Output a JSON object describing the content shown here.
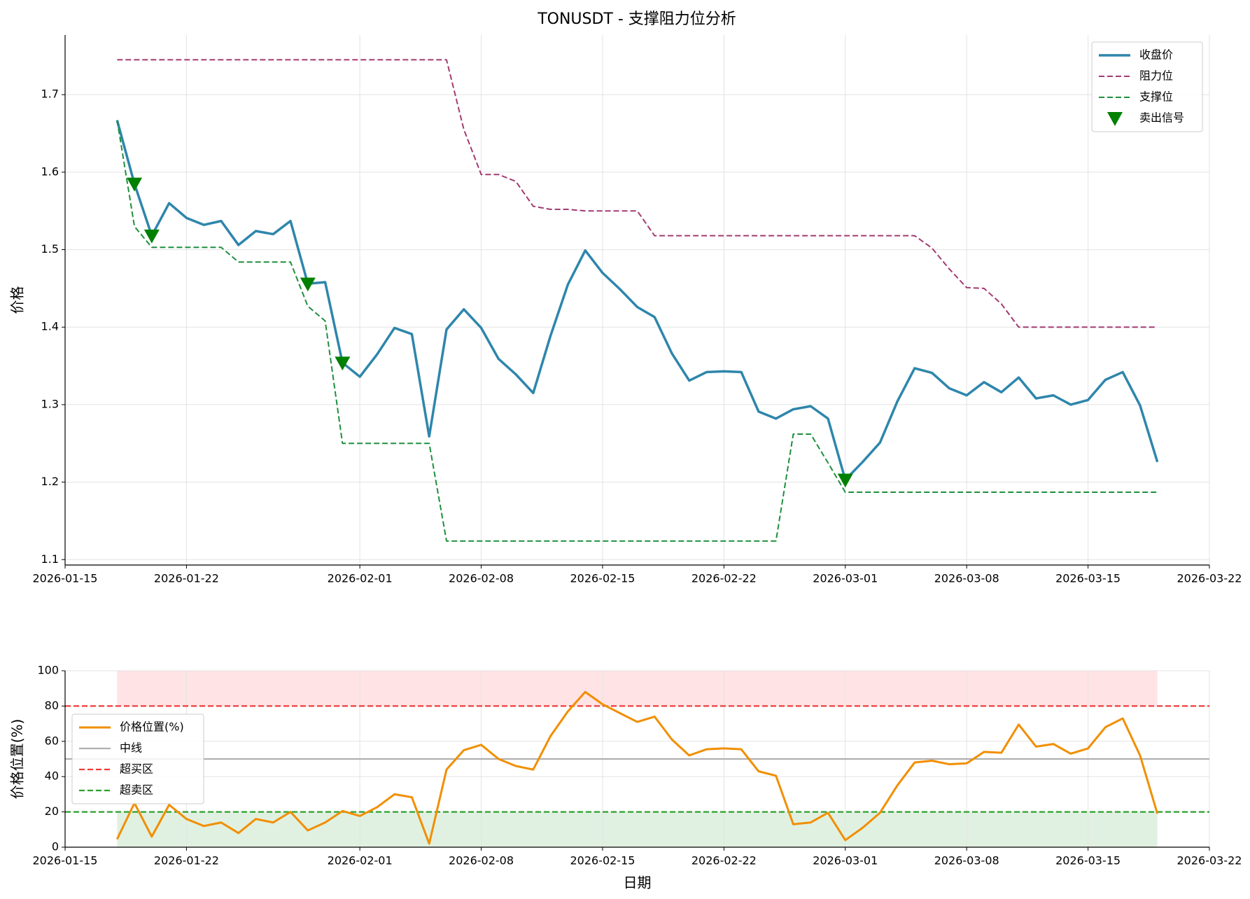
{
  "chart_data": [
    {
      "type": "line",
      "title": "TONUSDT - 支撑阻力位分析",
      "y_label": "价格",
      "x": [
        "2026-01-18",
        "2026-01-19",
        "2026-01-20",
        "2026-01-21",
        "2026-01-22",
        "2026-01-23",
        "2026-01-24",
        "2026-01-25",
        "2026-01-26",
        "2026-01-27",
        "2026-01-28",
        "2026-01-29",
        "2026-01-30",
        "2026-01-31",
        "2026-02-01",
        "2026-02-02",
        "2026-02-03",
        "2026-02-04",
        "2026-02-05",
        "2026-02-06",
        "2026-02-07",
        "2026-02-08",
        "2026-02-09",
        "2026-02-10",
        "2026-02-11",
        "2026-02-12",
        "2026-02-13",
        "2026-02-14",
        "2026-02-15",
        "2026-02-16",
        "2026-02-17",
        "2026-02-18",
        "2026-02-19",
        "2026-02-20",
        "2026-02-21",
        "2026-02-22",
        "2026-02-23",
        "2026-02-24",
        "2026-02-25",
        "2026-02-26",
        "2026-02-27",
        "2026-02-28",
        "2026-03-01",
        "2026-03-02",
        "2026-03-03",
        "2026-03-04",
        "2026-03-05",
        "2026-03-06",
        "2026-03-07",
        "2026-03-08",
        "2026-03-09",
        "2026-03-10",
        "2026-03-11",
        "2026-03-12",
        "2026-03-13",
        "2026-03-14",
        "2026-03-15",
        "2026-03-16",
        "2026-03-17",
        "2026-03-18",
        "2026-03-19"
      ],
      "series": [
        {
          "name": "收盘价",
          "color": "#2e86ab",
          "linestyle": "solid",
          "width": 3.5,
          "values": [
            1.667,
            1.585,
            1.518,
            1.56,
            1.541,
            1.532,
            1.537,
            1.506,
            1.524,
            1.52,
            1.537,
            1.456,
            1.458,
            1.354,
            1.336,
            1.365,
            1.399,
            1.391,
            1.259,
            1.397,
            1.423,
            1.399,
            1.359,
            1.339,
            1.315,
            1.389,
            1.455,
            1.499,
            1.47,
            1.449,
            1.426,
            1.413,
            1.366,
            1.331,
            1.342,
            1.343,
            1.342,
            1.291,
            1.282,
            1.294,
            1.298,
            1.282,
            1.203,
            1.226,
            1.251,
            1.304,
            1.347,
            1.341,
            1.321,
            1.312,
            1.329,
            1.316,
            1.335,
            1.308,
            1.312,
            1.3,
            1.306,
            1.332,
            1.342,
            1.299,
            1.226
          ]
        },
        {
          "name": "阻力位",
          "color": "#a23b72",
          "linestyle": "dashed",
          "width": 2,
          "values": [
            1.745,
            1.745,
            1.745,
            1.745,
            1.745,
            1.745,
            1.745,
            1.745,
            1.745,
            1.745,
            1.745,
            1.745,
            1.745,
            1.745,
            1.745,
            1.745,
            1.745,
            1.745,
            1.745,
            1.745,
            1.655,
            1.597,
            1.597,
            1.588,
            1.556,
            1.552,
            1.552,
            1.55,
            1.55,
            1.55,
            1.55,
            1.518,
            1.518,
            1.518,
            1.518,
            1.518,
            1.518,
            1.518,
            1.518,
            1.518,
            1.518,
            1.518,
            1.518,
            1.518,
            1.518,
            1.518,
            1.518,
            1.502,
            1.475,
            1.451,
            1.45,
            1.43,
            1.4,
            1.4,
            1.4,
            1.4,
            1.4,
            1.4,
            1.4,
            1.4,
            1.4
          ]
        },
        {
          "name": "支撑位",
          "color": "#1e8f3e",
          "linestyle": "dashed",
          "width": 2,
          "values": [
            1.667,
            1.53,
            1.503,
            1.503,
            1.503,
            1.503,
            1.503,
            1.484,
            1.484,
            1.484,
            1.484,
            1.427,
            1.408,
            1.25,
            1.25,
            1.25,
            1.25,
            1.25,
            1.25,
            1.124,
            1.124,
            1.124,
            1.124,
            1.124,
            1.124,
            1.124,
            1.124,
            1.124,
            1.124,
            1.124,
            1.124,
            1.124,
            1.124,
            1.124,
            1.124,
            1.124,
            1.124,
            1.124,
            1.124,
            1.262,
            1.262,
            1.225,
            1.187,
            1.187,
            1.187,
            1.187,
            1.187,
            1.187,
            1.187,
            1.187,
            1.187,
            1.187,
            1.187,
            1.187,
            1.187,
            1.187,
            1.187,
            1.187,
            1.187,
            1.187,
            1.187
          ]
        }
      ],
      "markers": {
        "name": "卖出信号",
        "color": "#008000",
        "x": [
          "2026-01-19",
          "2026-01-20",
          "2026-01-29",
          "2026-01-31",
          "2026-03-01"
        ],
        "values": [
          1.585,
          1.518,
          1.456,
          1.354,
          1.203
        ]
      },
      "xlim": [
        "2026-01-15",
        "2026-03-22"
      ],
      "xticks": [
        "2026-01-15",
        "2026-01-22",
        "2026-02-01",
        "2026-02-08",
        "2026-02-15",
        "2026-02-22",
        "2026-03-01",
        "2026-03-08",
        "2026-03-15",
        "2026-03-22"
      ],
      "ylim": [
        1.093,
        1.777
      ],
      "yticks": [
        1.1,
        1.2,
        1.3,
        1.4,
        1.5,
        1.6,
        1.7
      ],
      "grid": true,
      "legend": "upper right"
    },
    {
      "type": "line",
      "y_label": "价格位置(%)",
      "x_label": "日期",
      "x": [
        "2026-01-18",
        "2026-01-19",
        "2026-01-20",
        "2026-01-21",
        "2026-01-22",
        "2026-01-23",
        "2026-01-24",
        "2026-01-25",
        "2026-01-26",
        "2026-01-27",
        "2026-01-28",
        "2026-01-29",
        "2026-01-30",
        "2026-01-31",
        "2026-02-01",
        "2026-02-02",
        "2026-02-03",
        "2026-02-04",
        "2026-02-05",
        "2026-02-06",
        "2026-02-07",
        "2026-02-08",
        "2026-02-09",
        "2026-02-10",
        "2026-02-11",
        "2026-02-12",
        "2026-02-13",
        "2026-02-14",
        "2026-02-15",
        "2026-02-16",
        "2026-02-17",
        "2026-02-18",
        "2026-02-19",
        "2026-02-20",
        "2026-02-21",
        "2026-02-22",
        "2026-02-23",
        "2026-02-24",
        "2026-02-25",
        "2026-02-26",
        "2026-02-27",
        "2026-02-28",
        "2026-03-01",
        "2026-03-02",
        "2026-03-03",
        "2026-03-04",
        "2026-03-05",
        "2026-03-06",
        "2026-03-07",
        "2026-03-08",
        "2026-03-09",
        "2026-03-10",
        "2026-03-11",
        "2026-03-12",
        "2026-03-13",
        "2026-03-14",
        "2026-03-15",
        "2026-03-16",
        "2026-03-17",
        "2026-03-18",
        "2026-03-19"
      ],
      "series": [
        {
          "name": "价格位置(%)",
          "color": "#f18f01",
          "linestyle": "solid",
          "width": 3,
          "values": [
            4.5,
            25,
            6,
            24,
            16,
            12,
            14,
            8,
            16,
            14,
            20,
            9.5,
            14,
            20.5,
            17.7,
            22.7,
            30,
            28.3,
            2,
            44,
            55,
            58,
            50,
            46,
            44,
            63,
            77,
            88,
            81,
            76,
            71,
            74,
            61,
            52,
            55.5,
            56,
            55.5,
            43,
            40.5,
            13,
            14,
            19.5,
            4,
            11,
            19.5,
            35,
            48,
            49,
            47,
            47.5,
            54,
            53.5,
            69.5,
            57,
            58.5,
            53,
            56,
            68,
            73,
            52,
            19
          ]
        }
      ],
      "hlines": [
        {
          "name": "中线",
          "value": 50,
          "color": "#b0b0b0",
          "linestyle": "solid"
        },
        {
          "name": "超买区",
          "value": 80,
          "color": "#f03c3c",
          "linestyle": "dashed"
        },
        {
          "name": "超卖区",
          "value": 20,
          "color": "#2ca02c",
          "linestyle": "dashed"
        }
      ],
      "bands": [
        {
          "range": [
            80,
            100
          ],
          "color": "#ffcccf"
        },
        {
          "range": [
            0,
            20
          ],
          "color": "#c8e6c9"
        }
      ],
      "xlim": [
        "2026-01-15",
        "2026-03-22"
      ],
      "xticks": [
        "2026-01-15",
        "2026-01-22",
        "2026-02-01",
        "2026-02-08",
        "2026-02-15",
        "2026-02-22",
        "2026-03-01",
        "2026-03-08",
        "2026-03-15",
        "2026-03-22"
      ],
      "ylim": [
        0,
        100
      ],
      "yticks": [
        0,
        20,
        40,
        60,
        80,
        100
      ],
      "grid": true,
      "legend": "center left"
    }
  ]
}
